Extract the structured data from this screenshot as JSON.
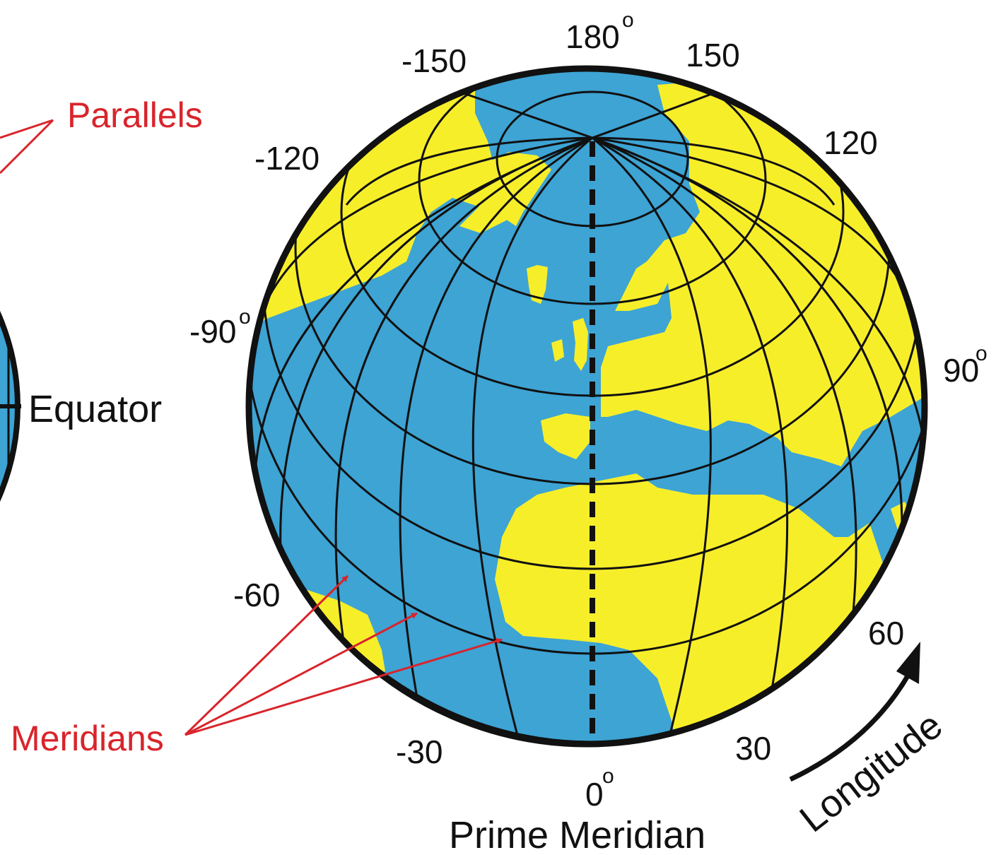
{
  "labels": {
    "parallels": "Parallels",
    "meridians": "Meridians",
    "equator": "Equator",
    "prime_meridian": "Prime Meridian",
    "longitude": "Longitude",
    "degree_mark": "o"
  },
  "longitude_ticks": {
    "t180": "180",
    "t150w": "-150",
    "t150e": "150",
    "t120w": "-120",
    "t120e": "120",
    "t90w": "-90",
    "t90e": "90",
    "t60w": "-60",
    "t60e": "60",
    "t30w": "-30",
    "t30e": "30",
    "t0": "0"
  },
  "colors": {
    "land": "#f7ee2a",
    "ocean": "#3da4d4",
    "grid": "#111111",
    "annotation": "#d9242b"
  }
}
